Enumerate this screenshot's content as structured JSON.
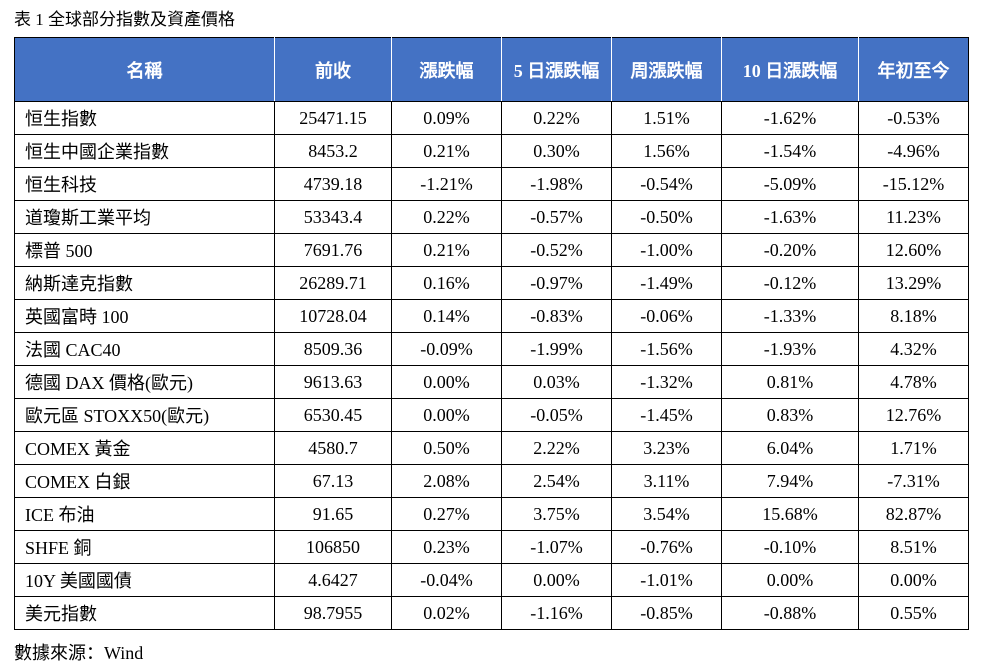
{
  "caption": "表 1 全球部分指數及資產價格",
  "source": "數據來源：Wind",
  "columns": [
    "名稱",
    "前收",
    "漲跌幅",
    "5 日漲跌幅",
    "周漲跌幅",
    "10 日漲跌幅",
    "年初至今"
  ],
  "rows": [
    [
      "恒生指數",
      "25471.15",
      "0.09%",
      "0.22%",
      "1.51%",
      "-1.62%",
      "-0.53%"
    ],
    [
      "恒生中國企業指數",
      "8453.2",
      "0.21%",
      "0.30%",
      "1.56%",
      "-1.54%",
      "-4.96%"
    ],
    [
      "恒生科技",
      "4739.18",
      "-1.21%",
      "-1.98%",
      "-0.54%",
      "-5.09%",
      "-15.12%"
    ],
    [
      "道瓊斯工業平均",
      "53343.4",
      "0.22%",
      "-0.57%",
      "-0.50%",
      "-1.63%",
      "11.23%"
    ],
    [
      "標普 500",
      "7691.76",
      "0.21%",
      "-0.52%",
      "-1.00%",
      "-0.20%",
      "12.60%"
    ],
    [
      "納斯達克指數",
      "26289.71",
      "0.16%",
      "-0.97%",
      "-1.49%",
      "-0.12%",
      "13.29%"
    ],
    [
      "英國富時 100",
      "10728.04",
      "0.14%",
      "-0.83%",
      "-0.06%",
      "-1.33%",
      "8.18%"
    ],
    [
      "法國 CAC40",
      "8509.36",
      "-0.09%",
      "-1.99%",
      "-1.56%",
      "-1.93%",
      "4.32%"
    ],
    [
      "德國 DAX 價格(歐元)",
      "9613.63",
      "0.00%",
      "0.03%",
      "-1.32%",
      "0.81%",
      "4.78%"
    ],
    [
      "歐元區 STOXX50(歐元)",
      "6530.45",
      "0.00%",
      "-0.05%",
      "-1.45%",
      "0.83%",
      "12.76%"
    ],
    [
      "COMEX 黃金",
      "4580.7",
      "0.50%",
      "2.22%",
      "3.23%",
      "6.04%",
      "1.71%"
    ],
    [
      "COMEX 白銀",
      "67.13",
      "2.08%",
      "2.54%",
      "3.11%",
      "7.94%",
      "-7.31%"
    ],
    [
      "ICE 布油",
      "91.65",
      "0.27%",
      "3.75%",
      "3.54%",
      "15.68%",
      "82.87%"
    ],
    [
      "SHFE 銅",
      "106850",
      "0.23%",
      "-1.07%",
      "-0.76%",
      "-0.10%",
      "8.51%"
    ],
    [
      "10Y  美國國債",
      "4.6427",
      "-0.04%",
      "0.00%",
      "-1.01%",
      "0.00%",
      "0.00%"
    ],
    [
      "美元指數",
      "98.7955",
      "0.02%",
      "-1.16%",
      "-0.85%",
      "-0.88%",
      "0.55%"
    ]
  ],
  "colors": {
    "header_bg": "#4472c4",
    "header_text": "#ffffff",
    "border": "#000000"
  }
}
